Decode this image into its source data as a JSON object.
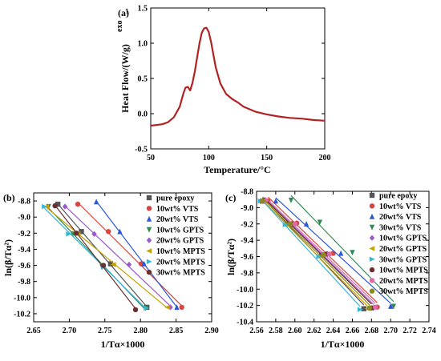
{
  "chart_data": [
    {
      "panel": "(a)",
      "type": "line",
      "xlabel": "Temperature/°C",
      "ylabel": "Heat Flow/(W/g)",
      "ylabel_super": "exo",
      "ylabel_arrow": "→",
      "xlim": [
        50,
        200
      ],
      "ylim": [
        -0.5,
        1.5
      ],
      "xticks": [
        50,
        100,
        150,
        200
      ],
      "yticks": [
        -0.5,
        0.0,
        0.5,
        1.0,
        1.5
      ],
      "xtick_labels": [
        "50",
        "100",
        "150",
        "200"
      ],
      "ytick_labels": [
        "-0.5",
        "0.0",
        "0.5",
        "1.0",
        "1.5"
      ],
      "series": [
        {
          "color": "#b22222",
          "x": [
            50,
            60,
            65,
            70,
            75,
            78,
            80,
            82,
            84,
            86,
            88,
            90,
            92,
            94,
            96,
            98,
            100,
            102,
            104,
            106,
            110,
            115,
            120,
            125,
            130,
            140,
            150,
            160,
            170,
            180,
            190,
            200
          ],
          "y": [
            -0.17,
            -0.15,
            -0.12,
            -0.05,
            0.1,
            0.28,
            0.37,
            0.38,
            0.33,
            0.44,
            0.6,
            0.8,
            1.0,
            1.15,
            1.21,
            1.22,
            1.16,
            1.02,
            0.84,
            0.66,
            0.43,
            0.28,
            0.21,
            0.16,
            0.1,
            0.03,
            -0.01,
            -0.04,
            -0.06,
            -0.07,
            -0.09,
            -0.1
          ]
        }
      ]
    },
    {
      "panel": "(b)",
      "type": "scatter",
      "xlabel": "1/Tα×1000",
      "ylabel": "ln(β/Tα²)",
      "xlim": [
        2.65,
        2.9
      ],
      "ylim": [
        -10.3,
        -8.7
      ],
      "xticks": [
        2.65,
        2.7,
        2.75,
        2.8,
        2.85,
        2.9
      ],
      "yticks": [
        -8.8,
        -9.0,
        -9.2,
        -9.4,
        -9.6,
        -9.8,
        -10.0,
        -10.2
      ],
      "xtick_labels": [
        "2.65",
        "2.70",
        "2.75",
        "2.80",
        "2.85",
        "2.90"
      ],
      "ytick_labels": [
        "-8.8",
        "-9.0",
        "-9.2",
        "-9.4",
        "-9.6",
        "-9.8",
        "-10.0",
        "-10.2"
      ],
      "legend_position": "top-right",
      "series": [
        {
          "name": "pure epoxy",
          "color": "#555555",
          "marker": "square",
          "x": [
            2.684,
            2.717,
            2.758,
            2.809
          ],
          "y": [
            -8.84,
            -9.18,
            -9.58,
            -10.12
          ]
        },
        {
          "name": "10wt% VTS",
          "color": "#d9443f",
          "marker": "circle",
          "x": [
            2.712,
            2.755,
            2.801,
            2.858
          ],
          "y": [
            -8.84,
            -9.18,
            -9.58,
            -10.12
          ]
        },
        {
          "name": "20wt% VTS",
          "color": "#2b57d8",
          "marker": "triangle-up",
          "x": [
            2.738,
            2.771,
            2.805,
            2.851
          ],
          "y": [
            -8.81,
            -9.18,
            -9.58,
            -10.12
          ]
        },
        {
          "name": "10wt% GPTS",
          "color": "#2e8b57",
          "marker": "triangle-down",
          "x": [
            2.671,
            2.705,
            2.746,
            2.807
          ],
          "y": [
            -8.87,
            -9.21,
            -9.62,
            -10.13
          ]
        },
        {
          "name": "20wt% GPTS",
          "color": "#9b59d0",
          "marker": "diamond",
          "x": [
            2.694,
            2.735,
            2.784,
            2.842
          ],
          "y": [
            -8.87,
            -9.21,
            -9.59,
            -10.12
          ]
        },
        {
          "name": "10wt% MPTS",
          "color": "#c8a000",
          "marker": "triangle-left",
          "x": [
            2.668,
            2.712,
            2.762,
            2.838
          ],
          "y": [
            -8.87,
            -9.21,
            -9.59,
            -10.12
          ]
        },
        {
          "name": "20wt% MPTS",
          "color": "#35b6d6",
          "marker": "triangle-right",
          "x": [
            2.665,
            2.699,
            2.748,
            2.808
          ],
          "y": [
            -8.87,
            -9.21,
            -9.62,
            -10.13
          ]
        },
        {
          "name": "30wt% MPTS",
          "color": "#6b2e2e",
          "marker": "circle",
          "x": [
            2.68,
            2.71,
            2.748,
            2.793
          ],
          "y": [
            -8.86,
            -9.2,
            -9.6,
            -10.15
          ]
        }
      ]
    },
    {
      "panel": "(c)",
      "type": "scatter",
      "xlabel": "1/Tα×1000",
      "ylabel": "ln(β/Tα²)",
      "xlim": [
        2.56,
        2.74
      ],
      "ylim": [
        -10.4,
        -8.8
      ],
      "xticks": [
        2.56,
        2.58,
        2.6,
        2.62,
        2.64,
        2.66,
        2.68,
        2.7,
        2.72,
        2.74
      ],
      "yticks": [
        -8.8,
        -9.0,
        -9.2,
        -9.4,
        -9.6,
        -9.8,
        -10.0,
        -10.2,
        -10.4
      ],
      "xtick_labels": [
        "2.56",
        "2.58",
        "2.60",
        "2.62",
        "2.64",
        "2.66",
        "2.68",
        "2.70",
        "2.72",
        "2.74"
      ],
      "ytick_labels": [
        "-8.8",
        "-9.0",
        "-9.2",
        "-9.4",
        "-9.6",
        "-9.8",
        "-10.0",
        "-10.2",
        "-10.4"
      ],
      "legend_position": "top-right",
      "series": [
        {
          "name": "pure epoxy",
          "color": "#555555",
          "marker": "square",
          "x": [
            2.566,
            2.594,
            2.628,
            2.672
          ],
          "y": [
            -8.92,
            -9.2,
            -9.58,
            -10.24
          ]
        },
        {
          "name": "10wt% VTS",
          "color": "#d9443f",
          "marker": "circle",
          "x": [
            2.572,
            2.602,
            2.64,
            2.686
          ],
          "y": [
            -8.92,
            -9.19,
            -9.56,
            -10.22
          ]
        },
        {
          "name": "20wt% VTS",
          "color": "#2b57d8",
          "marker": "triangle-up",
          "x": [
            2.58,
            2.612,
            2.648,
            2.7
          ],
          "y": [
            -8.92,
            -9.2,
            -9.56,
            -10.21
          ]
        },
        {
          "name": "30wt% VTS",
          "color": "#2e8b57",
          "marker": "triangle-down",
          "x": [
            2.596,
            2.626,
            2.66,
            2.703
          ],
          "y": [
            -8.91,
            -9.18,
            -9.55,
            -10.21
          ]
        },
        {
          "name": "10wt% GPTS",
          "color": "#9b59d0",
          "marker": "diamond",
          "x": [
            2.568,
            2.598,
            2.634,
            2.682
          ],
          "y": [
            -8.92,
            -9.2,
            -9.57,
            -10.23
          ]
        },
        {
          "name": "20wt% GPTS",
          "color": "#c8a000",
          "marker": "triangle-left",
          "x": [
            2.565,
            2.592,
            2.628,
            2.676
          ],
          "y": [
            -8.92,
            -9.21,
            -9.59,
            -10.24
          ]
        },
        {
          "name": "30wt% GPTS",
          "color": "#35b6d6",
          "marker": "triangle-right",
          "x": [
            2.564,
            2.59,
            2.625,
            2.668
          ],
          "y": [
            -8.92,
            -9.21,
            -9.6,
            -10.25
          ]
        },
        {
          "name": "10wt% MPTS",
          "color": "#6b2e2e",
          "marker": "circle",
          "x": [
            2.567,
            2.597,
            2.633,
            2.68
          ],
          "y": [
            -8.92,
            -9.2,
            -9.57,
            -10.23
          ]
        },
        {
          "name": "20wt% MPTS",
          "color": "#e06aa8",
          "marker": "circle",
          "x": [
            2.569,
            2.6,
            2.636,
            2.684
          ],
          "y": [
            -8.92,
            -9.2,
            -9.57,
            -10.22
          ]
        },
        {
          "name": "30wt% MPTS",
          "color": "#8a8a1e",
          "marker": "circle",
          "x": [
            2.566,
            2.595,
            2.63,
            2.678
          ],
          "y": [
            -8.92,
            -9.2,
            -9.58,
            -10.23
          ]
        }
      ]
    }
  ]
}
